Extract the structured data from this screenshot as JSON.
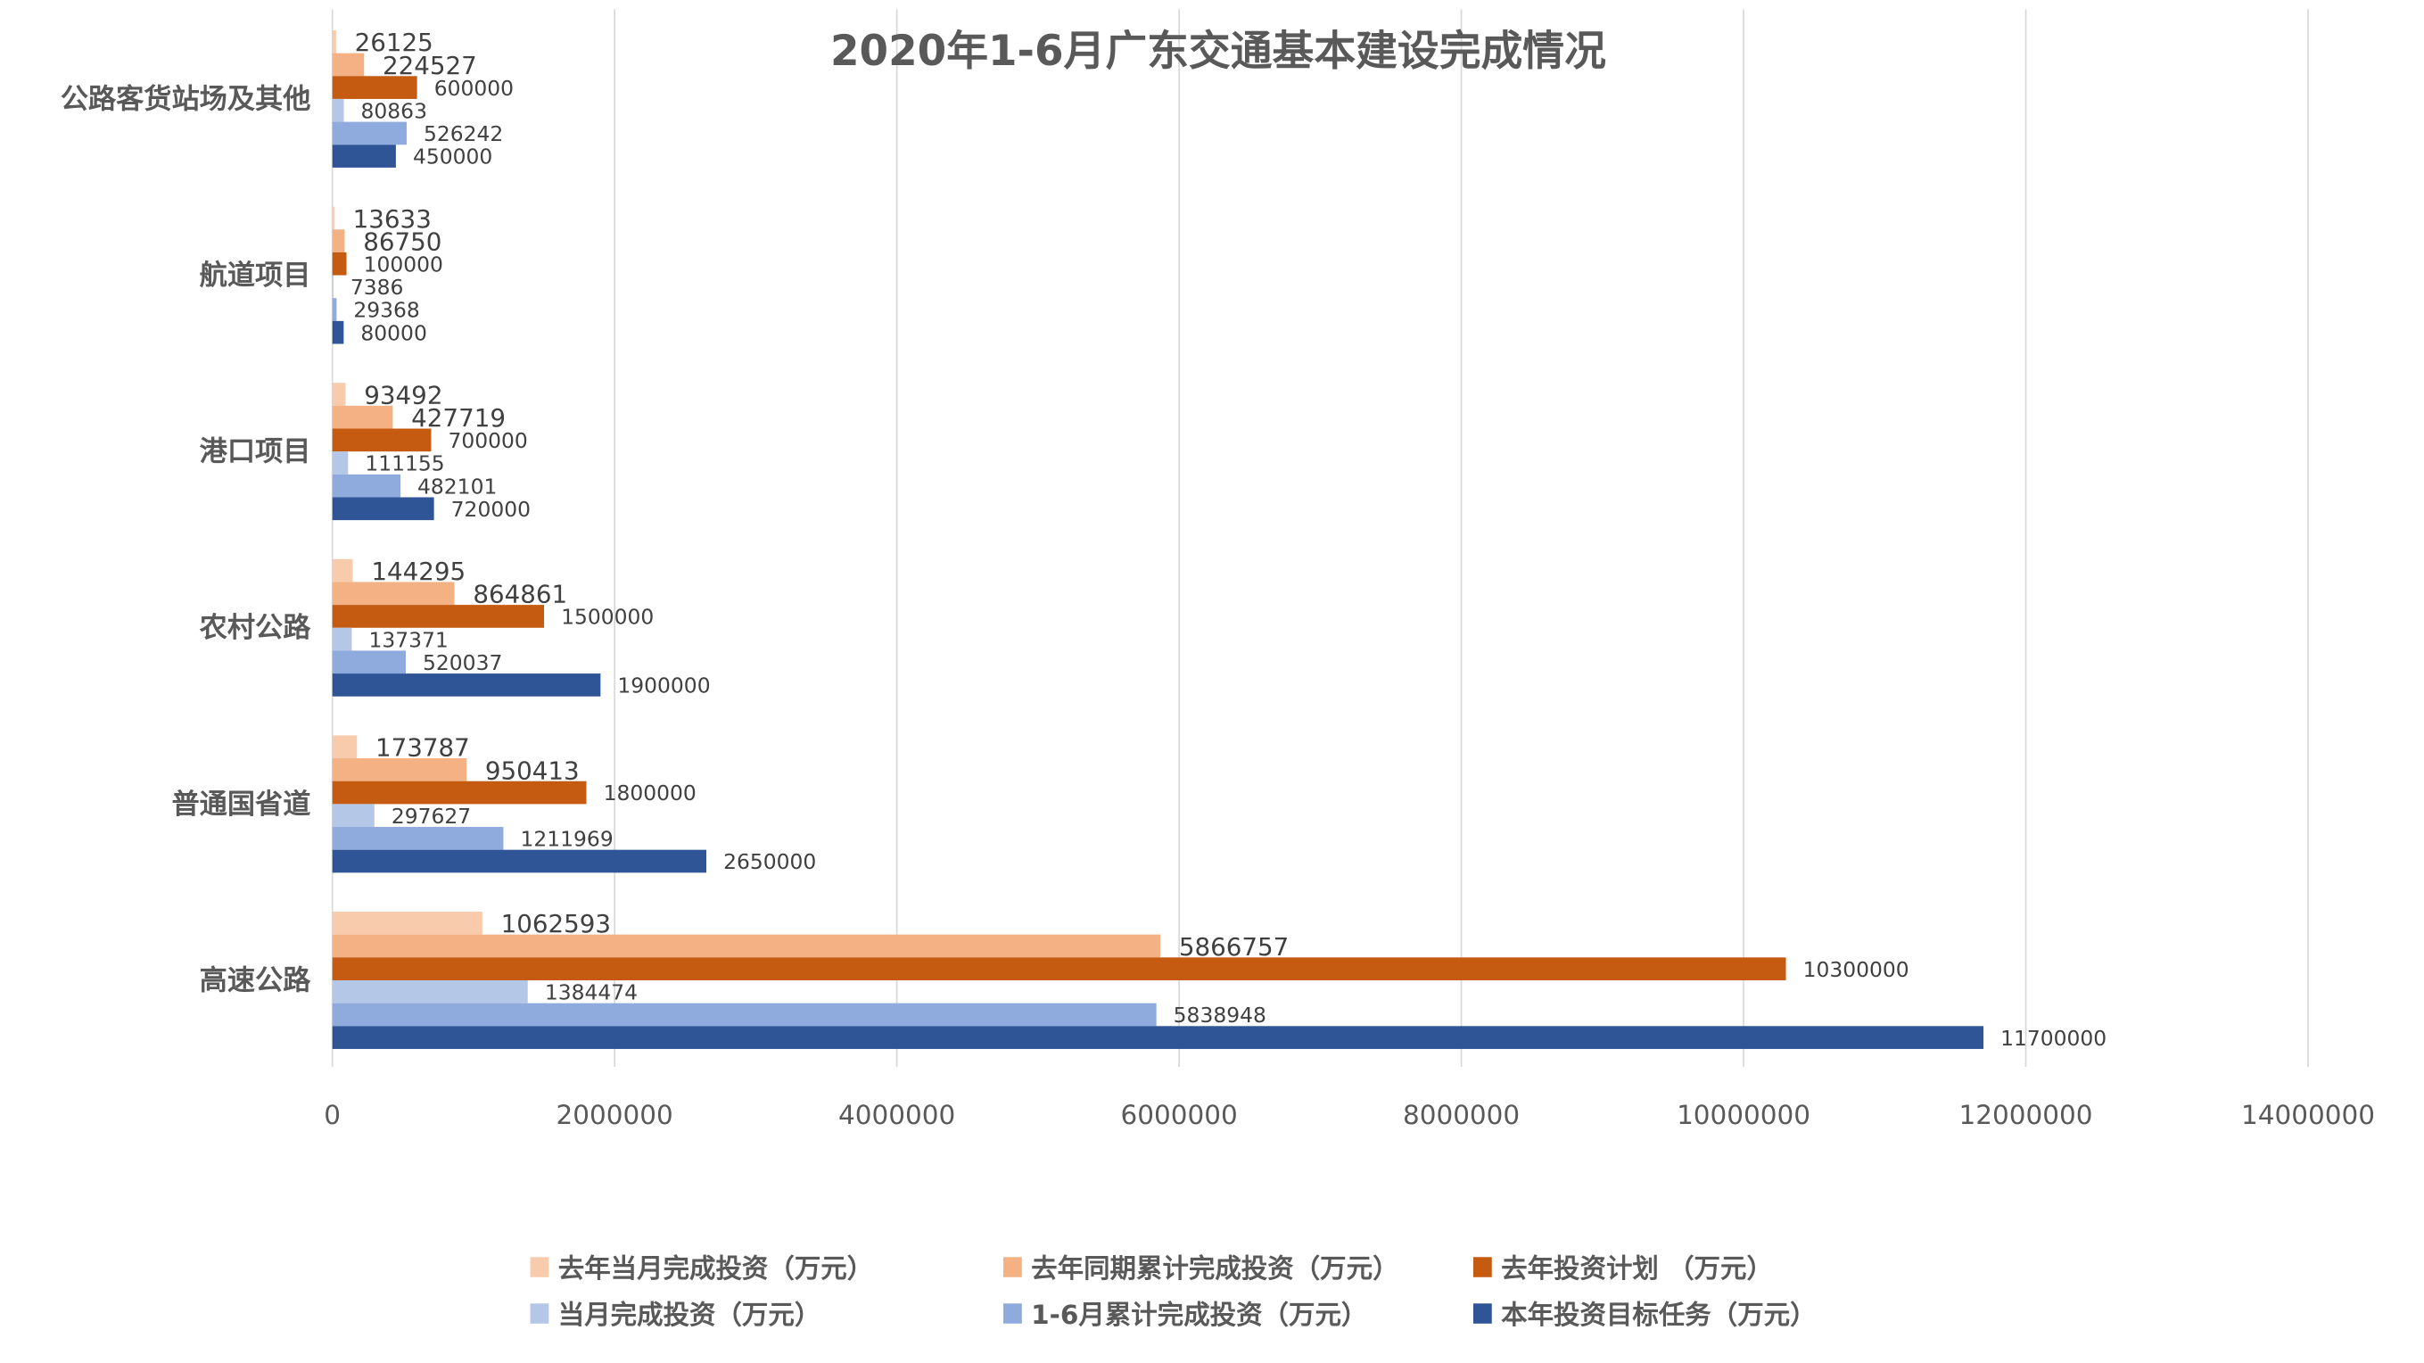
{
  "chart_data": {
    "type": "bar",
    "orientation": "horizontal",
    "title": "2020年1-6月广东交通基本建设完成情况",
    "xlabel": "",
    "ylabel": "",
    "xlim": [
      0,
      14000000
    ],
    "grid": true,
    "legend_position": "bottom",
    "x_ticks": [
      "0",
      "2000000",
      "4000000",
      "6000000",
      "8000000",
      "10000000",
      "12000000",
      "14000000"
    ],
    "x_tick_values": [
      0,
      2000000,
      4000000,
      6000000,
      8000000,
      10000000,
      12000000,
      14000000
    ],
    "categories": [
      "公路客货站场及其他",
      "航道项目",
      "港口项目",
      "农村公路",
      "普通国省道",
      "高速公路"
    ],
    "series": [
      {
        "name": "去年当月完成投资（万元）",
        "color": "#F8CBAD",
        "values": [
          26125,
          13633,
          93492,
          144295,
          173787,
          1062593
        ]
      },
      {
        "name": "去年同期累计完成投资（万元）",
        "color": "#F4B183",
        "values": [
          224527,
          86750,
          427719,
          864861,
          950413,
          5866757
        ]
      },
      {
        "name": "去年投资计划 （万元）",
        "color": "#C55A11",
        "values": [
          600000,
          100000,
          700000,
          1500000,
          1800000,
          10300000
        ]
      },
      {
        "name": "当月完成投资（万元）",
        "color": "#B4C7E7",
        "values": [
          80863,
          7386,
          111155,
          137371,
          297627,
          1384474
        ]
      },
      {
        "name": "1-6月累计完成投资（万元）",
        "color": "#8FAADC",
        "values": [
          526242,
          29368,
          482101,
          520037,
          1211969,
          5838948
        ]
      },
      {
        "name": "本年投资目标任务（万元）",
        "color": "#2F5597",
        "values": [
          450000,
          80000,
          720000,
          1900000,
          2650000,
          11700000
        ]
      }
    ]
  }
}
